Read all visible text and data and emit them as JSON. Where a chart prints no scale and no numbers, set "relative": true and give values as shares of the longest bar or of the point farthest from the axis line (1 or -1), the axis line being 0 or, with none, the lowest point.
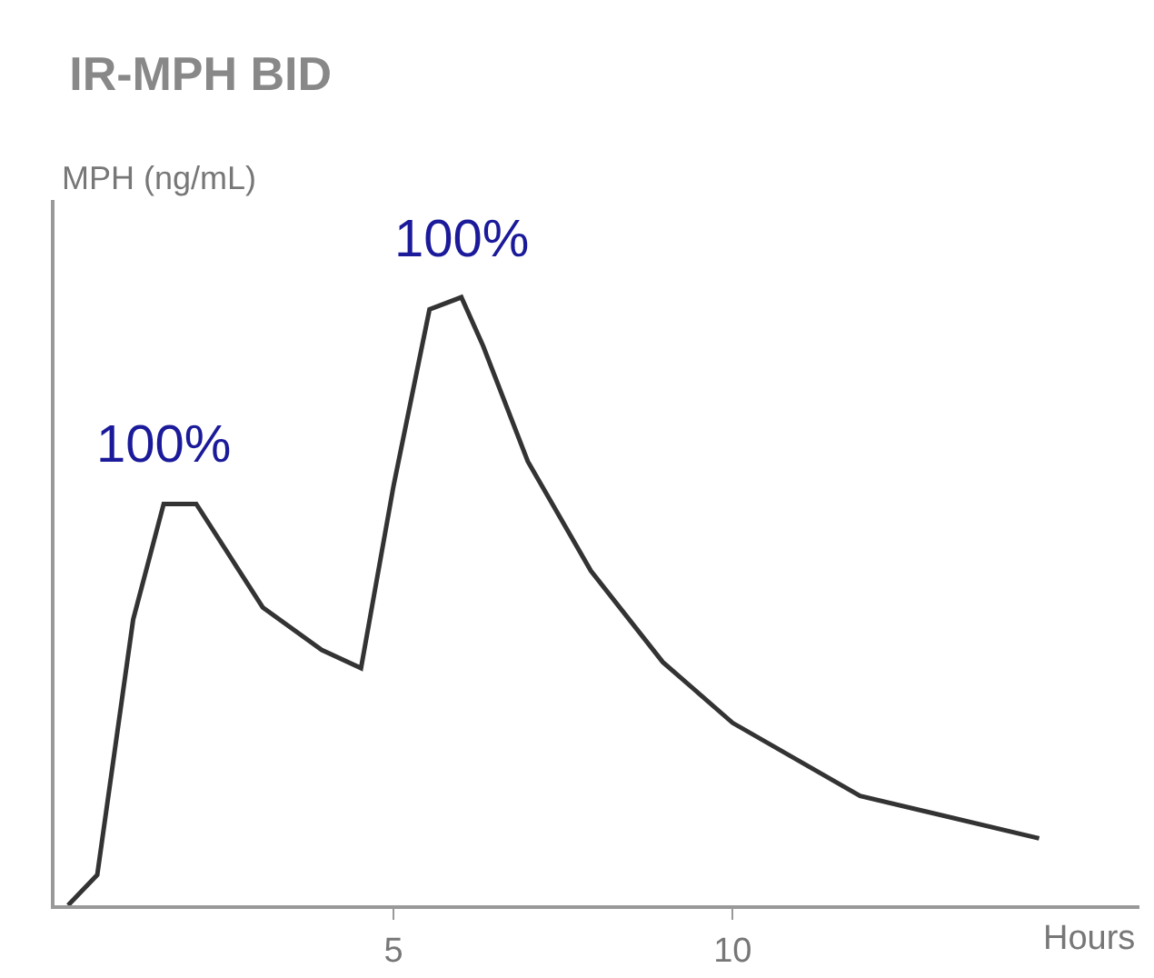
{
  "chart_data": {
    "type": "line",
    "title": "IR-MPH BID",
    "ylabel": "MPH (ng/mL)",
    "xlabel": "Hours",
    "relative": true,
    "x": [
      0.2,
      0.63,
      1.16,
      1.61,
      2.09,
      3.07,
      3.94,
      4.52,
      5,
      5.53,
      6.0,
      6.32,
      6.98,
      7.91,
      8.97,
      10,
      11.88,
      14.52
    ],
    "series": [
      {
        "color": "#333333",
        "values": [
          0,
          0.05,
          0.47,
          0.66,
          0.66,
          0.49,
          0.42,
          0.39,
          0.69,
          0.98,
          1,
          0.92,
          0.73,
          0.55,
          0.4,
          0.3,
          0.18,
          0.11
        ]
      }
    ],
    "xlim": [
      0,
      16
    ],
    "xticks": [
      5,
      10
    ],
    "annotations": [
      {
        "text": "100%",
        "x": 1.61,
        "y": 0.66
      },
      {
        "text": "100%",
        "x": 6.0,
        "y": 1
      }
    ],
    "grid": false,
    "legend": false,
    "marker": "none",
    "line_style": "solid"
  }
}
